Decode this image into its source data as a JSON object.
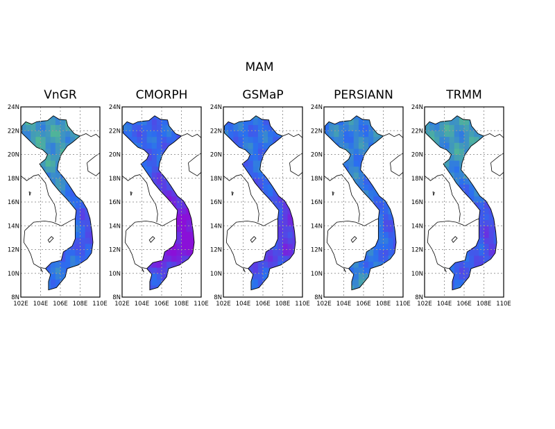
{
  "title": "MAM",
  "colors": {
    "frame": "#000000",
    "grid": "#9a9a9a",
    "scale_low": "#66dd66",
    "scale_mid": "#2a6ff0",
    "scale_high": "#8a10d8"
  },
  "panels": [
    {
      "title": "VnGR",
      "north_intensity": 0.3,
      "central_intensity": 0.55,
      "south_intensity": 0.45
    },
    {
      "title": "CMORPH",
      "north_intensity": 0.55,
      "central_intensity": 0.92,
      "south_intensity": 0.55
    },
    {
      "title": "GSMaP",
      "north_intensity": 0.5,
      "central_intensity": 0.7,
      "south_intensity": 0.55
    },
    {
      "title": "PERSIANN",
      "north_intensity": 0.42,
      "central_intensity": 0.5,
      "south_intensity": 0.35
    },
    {
      "title": "TRMM",
      "north_intensity": 0.32,
      "central_intensity": 0.62,
      "south_intensity": 0.55
    }
  ],
  "axes": {
    "x_ticks": [
      "102E",
      "104E",
      "106E",
      "108E",
      "110E"
    ],
    "y_ticks": [
      "8N",
      "10N",
      "12N",
      "14N",
      "16N",
      "18N",
      "20N",
      "22N",
      "24N"
    ],
    "lon_range": [
      102,
      110
    ],
    "lat_range": [
      8,
      24
    ],
    "grid": true
  }
}
